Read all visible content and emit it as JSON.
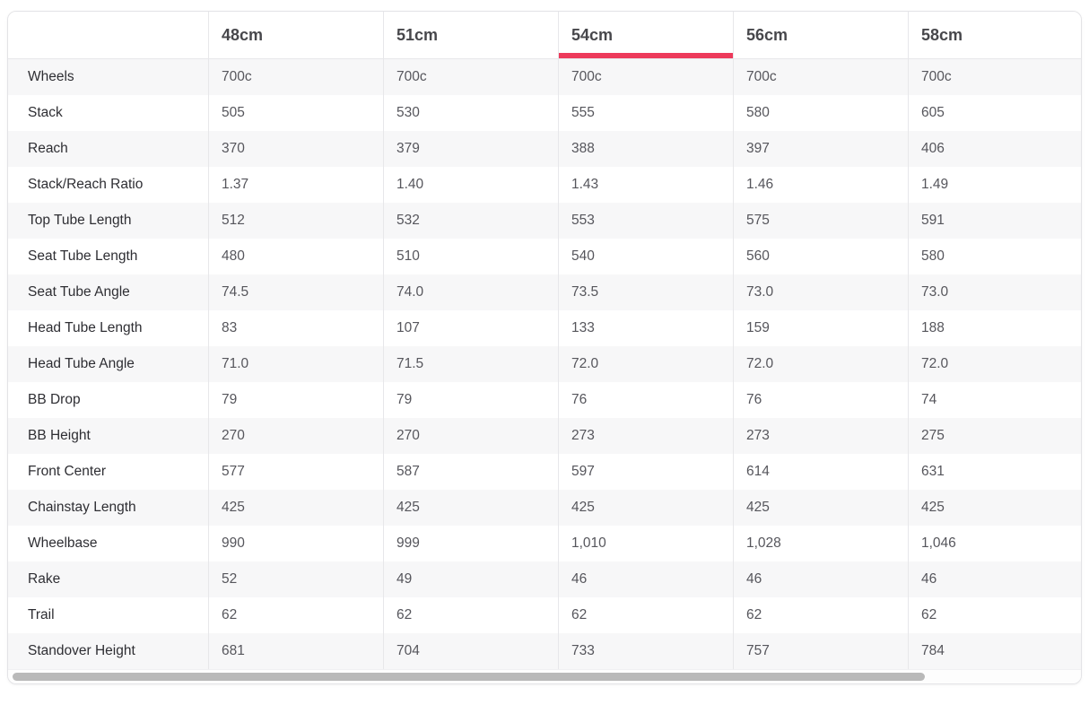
{
  "table": {
    "corner_label": "",
    "columns": [
      {
        "label": "48cm",
        "active": false
      },
      {
        "label": "51cm",
        "active": false
      },
      {
        "label": "54cm",
        "active": true
      },
      {
        "label": "56cm",
        "active": false
      },
      {
        "label": "58cm",
        "active": false
      }
    ],
    "rows": [
      {
        "label": "Wheels",
        "values": [
          "700c",
          "700c",
          "700c",
          "700c",
          "700c"
        ]
      },
      {
        "label": "Stack",
        "values": [
          "505",
          "530",
          "555",
          "580",
          "605"
        ]
      },
      {
        "label": "Reach",
        "values": [
          "370",
          "379",
          "388",
          "397",
          "406"
        ]
      },
      {
        "label": "Stack/Reach Ratio",
        "values": [
          "1.37",
          "1.40",
          "1.43",
          "1.46",
          "1.49"
        ]
      },
      {
        "label": "Top Tube Length",
        "values": [
          "512",
          "532",
          "553",
          "575",
          "591"
        ]
      },
      {
        "label": "Seat Tube Length",
        "values": [
          "480",
          "510",
          "540",
          "560",
          "580"
        ]
      },
      {
        "label": "Seat Tube Angle",
        "values": [
          "74.5",
          "74.0",
          "73.5",
          "73.0",
          "73.0"
        ]
      },
      {
        "label": "Head Tube Length",
        "values": [
          "83",
          "107",
          "133",
          "159",
          "188"
        ]
      },
      {
        "label": "Head Tube Angle",
        "values": [
          "71.0",
          "71.5",
          "72.0",
          "72.0",
          "72.0"
        ]
      },
      {
        "label": "BB Drop",
        "values": [
          "79",
          "79",
          "76",
          "76",
          "74"
        ]
      },
      {
        "label": "BB Height",
        "values": [
          "270",
          "270",
          "273",
          "273",
          "275"
        ]
      },
      {
        "label": "Front Center",
        "values": [
          "577",
          "587",
          "597",
          "614",
          "631"
        ]
      },
      {
        "label": "Chainstay Length",
        "values": [
          "425",
          "425",
          "425",
          "425",
          "425"
        ]
      },
      {
        "label": "Wheelbase",
        "values": [
          "990",
          "999",
          "1,010",
          "1,028",
          "1,046"
        ]
      },
      {
        "label": "Rake",
        "values": [
          "52",
          "49",
          "46",
          "46",
          "46"
        ]
      },
      {
        "label": "Trail",
        "values": [
          "62",
          "62",
          "62",
          "62",
          "62"
        ]
      },
      {
        "label": "Standover Height",
        "values": [
          "681",
          "704",
          "733",
          "757",
          "784"
        ]
      }
    ],
    "colors": {
      "active_underline": "#ed3a5b",
      "stripe": "#f7f7f8",
      "cell_border": "#e7e7ea",
      "header_text": "#47474b",
      "label_text": "#2e2e33",
      "value_text": "#56565c",
      "scrollbar_thumb": "#b9b9b9"
    },
    "scrollbar": {
      "thumb_percent": 85
    }
  }
}
